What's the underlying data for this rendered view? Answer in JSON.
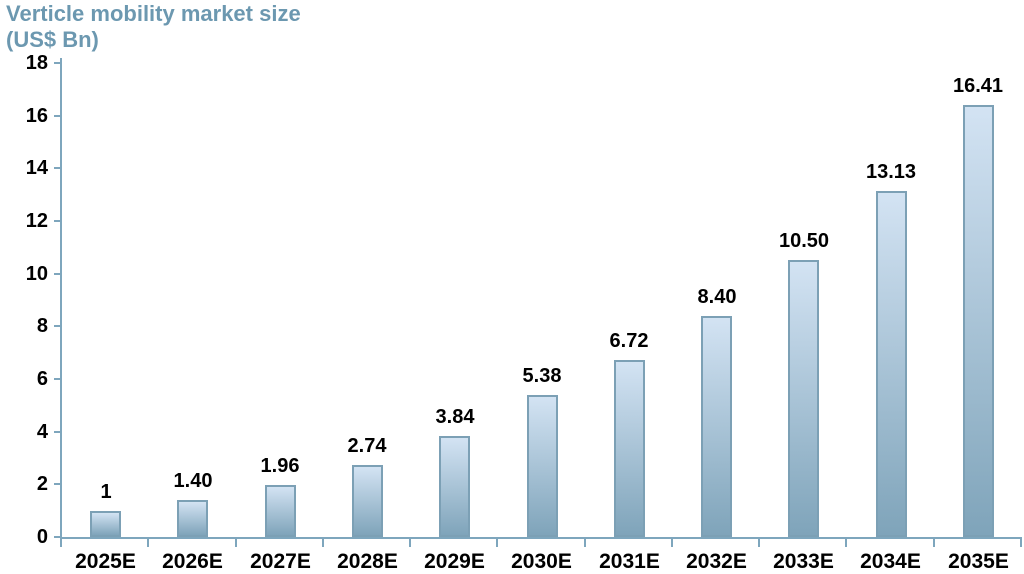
{
  "header": {
    "title_line1": "Verticle mobility market size",
    "title_line2": "(US$ Bn)"
  },
  "chart_data": {
    "type": "bar",
    "title": "Verticle mobility market size (US$ Bn)",
    "categories": [
      "2025E",
      "2026E",
      "2027E",
      "2028E",
      "2029E",
      "2030E",
      "2031E",
      "2032E",
      "2033E",
      "2034E",
      "2035E"
    ],
    "values": [
      1,
      1.4,
      1.96,
      2.74,
      3.84,
      5.38,
      6.72,
      8.4,
      10.5,
      13.13,
      16.41
    ],
    "value_labels": [
      "1",
      "1.40",
      "1.96",
      "2.74",
      "3.84",
      "5.38",
      "6.72",
      "8.40",
      "10.50",
      "13.13",
      "16.41"
    ],
    "xlabel": "",
    "ylabel": "",
    "ylim": [
      0,
      18
    ],
    "yticks": [
      0,
      2,
      4,
      6,
      8,
      10,
      12,
      14,
      16,
      18
    ],
    "grid": false,
    "legend_position": "none",
    "colors": {
      "title_text": "#6c98b0",
      "axis": "#7ea6bd",
      "bar_border": "#7ca0b5",
      "bar_gradient_top": "#d3e3f3",
      "bar_gradient_bottom": "#7fa4ba",
      "label_text": "#000000"
    }
  }
}
